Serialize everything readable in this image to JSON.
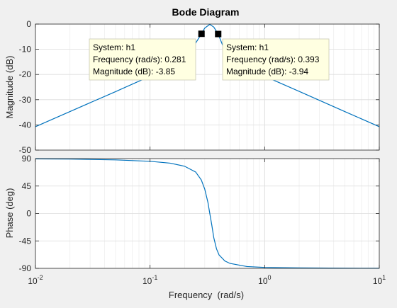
{
  "chart_data": {
    "type": "line",
    "title": "Bode Diagram",
    "xlabel": "Frequency  (rad/s)",
    "x_scale": "log",
    "xlim": [
      0.01,
      10
    ],
    "x_ticks": [
      {
        "value": 0.01,
        "base": "10",
        "exp": "-2"
      },
      {
        "value": 0.1,
        "base": "10",
        "exp": "-1"
      },
      {
        "value": 1,
        "base": "10",
        "exp": "0"
      },
      {
        "value": 10,
        "base": "10",
        "exp": "1"
      }
    ],
    "series_color": "#0072bd",
    "panels": [
      {
        "ylabel": "Magnitude (dB)",
        "ylim": [
          -50,
          0
        ],
        "yticks": [
          0,
          -10,
          -20,
          -30,
          -40,
          -50
        ],
        "ytick_labels": [
          "0",
          "-10",
          "-20",
          "-30",
          "-40",
          "-50"
        ],
        "series": {
          "x": [
            0.01,
            0.02,
            0.05,
            0.1,
            0.2,
            0.281,
            0.3,
            0.332,
            0.36,
            0.393,
            0.5,
            1,
            2,
            5,
            10
          ],
          "y": [
            -40.7,
            -34.7,
            -26.8,
            -20.7,
            -14.6,
            -3.85,
            -1.6,
            -0.1,
            -1.2,
            -3.94,
            -15.9,
            -20.7,
            -26.7,
            -34.7,
            -40.7
          ]
        }
      },
      {
        "ylabel": "Phase (deg)",
        "ylim": [
          -90,
          90
        ],
        "yticks": [
          90,
          45,
          0,
          -45,
          -90
        ],
        "ytick_labels": [
          "90",
          "45",
          "0",
          "-45",
          "-90"
        ],
        "series": {
          "x": [
            0.01,
            0.02,
            0.05,
            0.1,
            0.15,
            0.2,
            0.25,
            0.28,
            0.3,
            0.32,
            0.332,
            0.345,
            0.36,
            0.38,
            0.4,
            0.45,
            0.5,
            0.7,
            1,
            2,
            5,
            10
          ],
          "y": [
            89.6,
            89.2,
            87.9,
            85.6,
            82.5,
            77.5,
            68,
            55,
            40,
            18,
            0,
            -18,
            -40,
            -58,
            -68,
            -78,
            -82,
            -87,
            -88.5,
            -89.3,
            -89.7,
            -89.9
          ]
        }
      }
    ],
    "datatips": [
      {
        "system": "System: h1",
        "frequency": "Frequency (rad/s): 0.281",
        "magnitude": "Magnitude (dB): -3.85",
        "x": 0.281,
        "y": -3.85
      },
      {
        "system": "System: h1",
        "frequency": "Frequency (rad/s): 0.393",
        "magnitude": "Magnitude (dB): -3.94",
        "x": 0.393,
        "y": -3.94
      }
    ]
  }
}
